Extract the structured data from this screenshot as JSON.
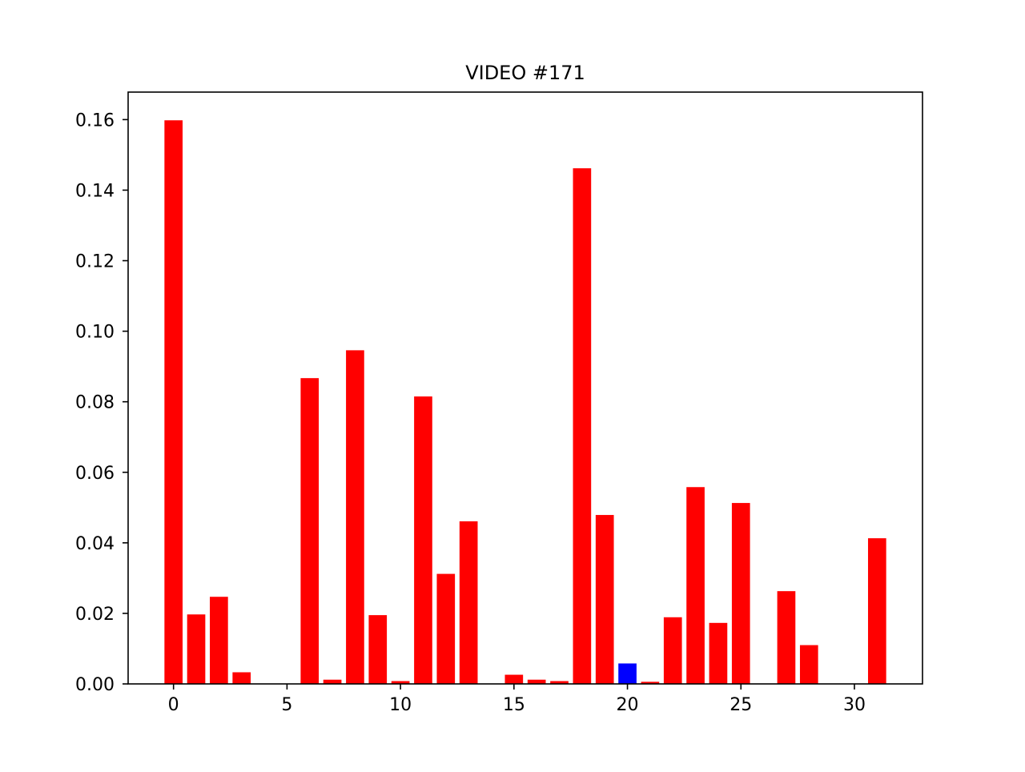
{
  "chart_data": {
    "type": "bar",
    "title": "VIDEO #171",
    "xlabel": "",
    "ylabel": "",
    "x": [
      0,
      1,
      2,
      3,
      4,
      5,
      6,
      7,
      8,
      9,
      10,
      11,
      12,
      13,
      14,
      15,
      16,
      17,
      18,
      19,
      20,
      21,
      22,
      23,
      24,
      25,
      26,
      27,
      28,
      29,
      30,
      31
    ],
    "values": [
      0.1598,
      0.0197,
      0.0247,
      0.0033,
      0.0,
      0.0,
      0.0867,
      0.0012,
      0.0946,
      0.0195,
      0.0008,
      0.0815,
      0.0312,
      0.0461,
      0.0,
      0.0026,
      0.0012,
      0.0008,
      0.1462,
      0.0479,
      0.0058,
      0.0006,
      0.0189,
      0.0558,
      0.0173,
      0.0513,
      0.0,
      0.0263,
      0.011,
      0.0,
      0.0,
      0.0413
    ],
    "colors": [
      "#ff0000",
      "#ff0000",
      "#ff0000",
      "#ff0000",
      "#ff0000",
      "#ff0000",
      "#ff0000",
      "#ff0000",
      "#ff0000",
      "#ff0000",
      "#ff0000",
      "#ff0000",
      "#ff0000",
      "#ff0000",
      "#ff0000",
      "#ff0000",
      "#ff0000",
      "#ff0000",
      "#ff0000",
      "#ff0000",
      "#0000ff",
      "#ff0000",
      "#ff0000",
      "#ff0000",
      "#ff0000",
      "#ff0000",
      "#ff0000",
      "#ff0000",
      "#ff0000",
      "#ff0000",
      "#ff0000",
      "#ff0000"
    ],
    "xlim": [
      -2,
      33
    ],
    "ylim": [
      0,
      0.1678
    ],
    "xticks": [
      0,
      5,
      10,
      15,
      20,
      25,
      30
    ],
    "xtick_labels": [
      "0",
      "5",
      "10",
      "15",
      "20",
      "25",
      "30"
    ],
    "yticks": [
      0.0,
      0.02,
      0.04,
      0.06,
      0.08,
      0.1,
      0.12,
      0.14,
      0.16
    ],
    "ytick_labels": [
      "0.00",
      "0.02",
      "0.04",
      "0.06",
      "0.08",
      "0.10",
      "0.12",
      "0.14",
      "0.16"
    ],
    "grid": false,
    "legend": "none"
  }
}
